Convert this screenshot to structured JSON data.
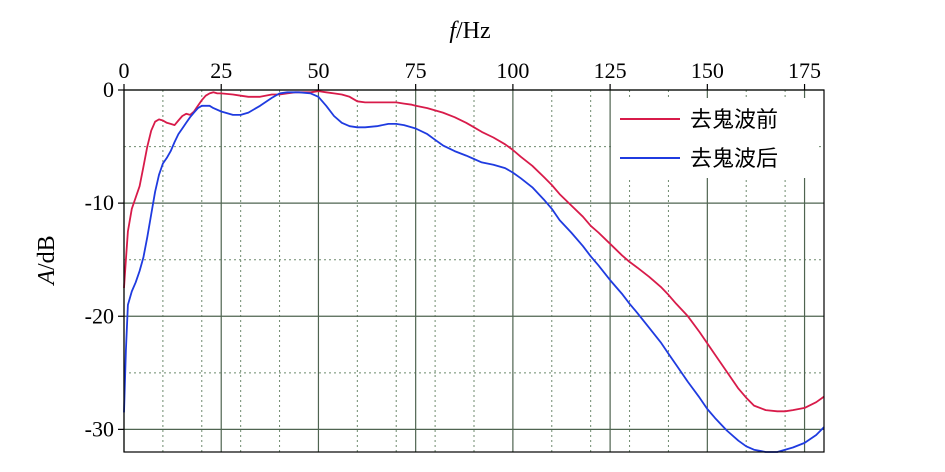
{
  "chart_data": {
    "type": "line",
    "xlabel": {
      "italic": "f",
      "rest": "/Hz"
    },
    "ylabel": {
      "italic": "A",
      "rest": "/dB"
    },
    "xlim": [
      0,
      180
    ],
    "ylim": [
      -32,
      0
    ],
    "x_ticks": [
      0,
      25,
      50,
      75,
      100,
      125,
      150,
      175
    ],
    "x_tick_labels": [
      "0",
      "25",
      "50",
      "75",
      "100",
      "125",
      "150",
      "175"
    ],
    "y_ticks": [
      0,
      -10,
      -20,
      -30
    ],
    "y_tick_labels": [
      "0",
      "-10",
      "-20",
      "-30"
    ],
    "x_minor_grid": [
      10,
      20,
      30,
      40,
      60,
      70,
      80,
      90,
      110,
      120,
      130,
      140,
      160,
      170
    ],
    "y_minor_grid": [
      -5,
      -15,
      -25
    ],
    "grid": true,
    "legend_position": "top-right",
    "series": [
      {
        "name": "去鬼波前",
        "color": "#d81b4a",
        "x": [
          0,
          0.5,
          1,
          2,
          3,
          4,
          5,
          6,
          7,
          8,
          9,
          10,
          11,
          12,
          13,
          14,
          15,
          16,
          17,
          18,
          19,
          20,
          21,
          22,
          23,
          24,
          25,
          28,
          30,
          32,
          35,
          38,
          40,
          42,
          44,
          45,
          46,
          48,
          50,
          52,
          54,
          56,
          58,
          60,
          62,
          64,
          66,
          68,
          70,
          72,
          74,
          75,
          78,
          80,
          82,
          85,
          88,
          90,
          92,
          95,
          98,
          100,
          102,
          105,
          108,
          110,
          112,
          115,
          118,
          120,
          122,
          125,
          128,
          130,
          132,
          135,
          138,
          140,
          142,
          145,
          148,
          150,
          152,
          155,
          158,
          160,
          162,
          165,
          168,
          170,
          172,
          175,
          178,
          180
        ],
        "y": [
          -17.5,
          -15.0,
          -12.5,
          -10.5,
          -9.5,
          -8.5,
          -6.8,
          -5.0,
          -3.6,
          -2.8,
          -2.6,
          -2.7,
          -2.9,
          -3.0,
          -3.1,
          -2.7,
          -2.3,
          -2.1,
          -2.2,
          -1.9,
          -1.4,
          -0.9,
          -0.5,
          -0.3,
          -0.2,
          -0.3,
          -0.3,
          -0.4,
          -0.5,
          -0.6,
          -0.6,
          -0.4,
          -0.4,
          -0.3,
          -0.2,
          -0.2,
          -0.2,
          -0.2,
          -0.1,
          -0.2,
          -0.3,
          -0.4,
          -0.6,
          -1.0,
          -1.1,
          -1.1,
          -1.1,
          -1.1,
          -1.1,
          -1.2,
          -1.3,
          -1.4,
          -1.6,
          -1.8,
          -2.0,
          -2.4,
          -2.9,
          -3.3,
          -3.7,
          -4.2,
          -4.8,
          -5.3,
          -5.9,
          -6.7,
          -7.7,
          -8.4,
          -9.2,
          -10.2,
          -11.2,
          -12.0,
          -12.6,
          -13.6,
          -14.6,
          -15.2,
          -15.7,
          -16.5,
          -17.4,
          -18.1,
          -18.9,
          -20.0,
          -21.4,
          -22.4,
          -23.4,
          -24.9,
          -26.4,
          -27.2,
          -27.9,
          -28.3,
          -28.4,
          -28.4,
          -28.3,
          -28.1,
          -27.6,
          -27.1
        ]
      },
      {
        "name": "去鬼波后",
        "color": "#1f3be0",
        "x": [
          0,
          0.5,
          1,
          2,
          3,
          4,
          5,
          6,
          7,
          8,
          9,
          10,
          11,
          12,
          13,
          14,
          15,
          16,
          17,
          18,
          19,
          20,
          21,
          22,
          23,
          25,
          28,
          30,
          32,
          35,
          38,
          40,
          42,
          45,
          48,
          50,
          52,
          54,
          56,
          58,
          60,
          62,
          65,
          68,
          70,
          72,
          75,
          78,
          80,
          82,
          85,
          88,
          90,
          92,
          95,
          98,
          100,
          102,
          105,
          108,
          110,
          112,
          115,
          118,
          120,
          122,
          125,
          128,
          130,
          132,
          135,
          138,
          140,
          142,
          145,
          148,
          150,
          152,
          155,
          158,
          160,
          162,
          165,
          168,
          170,
          172,
          175,
          178,
          180
        ],
        "y": [
          -28.5,
          -23.0,
          -19.0,
          -17.8,
          -17.0,
          -16.0,
          -14.8,
          -13.0,
          -11.0,
          -9.0,
          -7.5,
          -6.5,
          -6.0,
          -5.4,
          -4.6,
          -3.9,
          -3.4,
          -2.9,
          -2.4,
          -2.0,
          -1.6,
          -1.4,
          -1.4,
          -1.4,
          -1.6,
          -1.9,
          -2.2,
          -2.2,
          -2.0,
          -1.4,
          -0.7,
          -0.3,
          -0.2,
          -0.2,
          -0.3,
          -0.6,
          -1.4,
          -2.3,
          -2.9,
          -3.2,
          -3.3,
          -3.3,
          -3.2,
          -3.0,
          -3.0,
          -3.1,
          -3.4,
          -3.9,
          -4.4,
          -4.9,
          -5.4,
          -5.8,
          -6.1,
          -6.4,
          -6.6,
          -6.9,
          -7.3,
          -7.8,
          -8.6,
          -9.7,
          -10.5,
          -11.5,
          -12.6,
          -13.8,
          -14.7,
          -15.5,
          -16.8,
          -18.0,
          -18.9,
          -19.7,
          -21.0,
          -22.3,
          -23.3,
          -24.3,
          -25.8,
          -27.2,
          -28.2,
          -29.0,
          -30.1,
          -31.0,
          -31.5,
          -31.8,
          -32.0,
          -32.0,
          -31.8,
          -31.6,
          -31.2,
          -30.5,
          -29.8
        ]
      }
    ]
  }
}
